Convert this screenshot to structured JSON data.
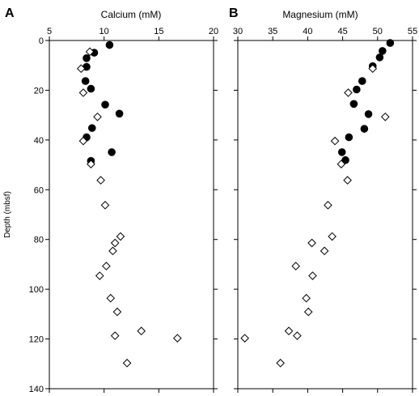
{
  "chart_data": [
    {
      "type": "scatter",
      "panel_label": "A",
      "xlabel": "Calcium (mM)",
      "ylabel": "Depth (mbsf)",
      "xlim": [
        5,
        20
      ],
      "ylim": [
        0,
        140
      ],
      "y_inverted": true,
      "x_axis_position": "top",
      "xticks": [
        5,
        10,
        15,
        20
      ],
      "yticks": [
        0,
        20,
        40,
        60,
        80,
        100,
        120,
        140
      ],
      "grid": false,
      "series": [
        {
          "marker": "filled-circle",
          "points": [
            {
              "x": 10.5,
              "y": 1.8
            },
            {
              "x": 9.1,
              "y": 4.9
            },
            {
              "x": 8.4,
              "y": 7.1
            },
            {
              "x": 8.4,
              "y": 10.6
            },
            {
              "x": 8.3,
              "y": 16.3
            },
            {
              "x": 8.8,
              "y": 19.4
            },
            {
              "x": 10.1,
              "y": 25.8
            },
            {
              "x": 11.4,
              "y": 29.4
            },
            {
              "x": 8.9,
              "y": 35.2
            },
            {
              "x": 8.4,
              "y": 38.9
            },
            {
              "x": 10.7,
              "y": 44.9
            },
            {
              "x": 8.8,
              "y": 48.4
            }
          ]
        },
        {
          "marker": "open-diamond",
          "points": [
            {
              "x": 8.7,
              "y": 4.5
            },
            {
              "x": 7.9,
              "y": 11.3
            },
            {
              "x": 8.1,
              "y": 21.0
            },
            {
              "x": 9.4,
              "y": 30.7
            },
            {
              "x": 8.1,
              "y": 40.4
            },
            {
              "x": 8.8,
              "y": 49.7
            },
            {
              "x": 9.7,
              "y": 56.2
            },
            {
              "x": 10.1,
              "y": 66.2
            },
            {
              "x": 11.5,
              "y": 78.8
            },
            {
              "x": 11.0,
              "y": 81.4
            },
            {
              "x": 10.8,
              "y": 84.6
            },
            {
              "x": 10.2,
              "y": 90.7
            },
            {
              "x": 9.6,
              "y": 94.6
            },
            {
              "x": 10.6,
              "y": 103.6
            },
            {
              "x": 11.2,
              "y": 109.1
            },
            {
              "x": 13.4,
              "y": 116.8
            },
            {
              "x": 11.0,
              "y": 118.7
            },
            {
              "x": 16.7,
              "y": 119.7
            },
            {
              "x": 12.1,
              "y": 129.7
            }
          ]
        }
      ]
    },
    {
      "type": "scatter",
      "panel_label": "B",
      "xlabel": "Magnesium (mM)",
      "ylabel": "",
      "xlim": [
        30,
        55
      ],
      "ylim": [
        0,
        140
      ],
      "y_inverted": true,
      "x_axis_position": "top",
      "xticks": [
        30,
        35,
        40,
        45,
        50,
        55
      ],
      "yticks": [
        0,
        20,
        40,
        60,
        80,
        100,
        120,
        140
      ],
      "grid": false,
      "series": [
        {
          "marker": "filled-circle",
          "points": [
            {
              "x": 51.8,
              "y": 1.0
            },
            {
              "x": 50.7,
              "y": 4.2
            },
            {
              "x": 50.3,
              "y": 6.8
            },
            {
              "x": 49.3,
              "y": 10.3
            },
            {
              "x": 47.8,
              "y": 16.3
            },
            {
              "x": 47.0,
              "y": 19.7
            },
            {
              "x": 46.6,
              "y": 25.5
            },
            {
              "x": 48.7,
              "y": 29.6
            },
            {
              "x": 48.1,
              "y": 35.5
            },
            {
              "x": 45.9,
              "y": 38.9
            },
            {
              "x": 44.9,
              "y": 44.9
            },
            {
              "x": 45.4,
              "y": 48.1
            }
          ]
        },
        {
          "marker": "open-diamond",
          "points": [
            {
              "x": 49.3,
              "y": 11.3
            },
            {
              "x": 45.8,
              "y": 21.0
            },
            {
              "x": 51.1,
              "y": 30.7
            },
            {
              "x": 43.9,
              "y": 40.4
            },
            {
              "x": 44.8,
              "y": 49.7
            },
            {
              "x": 45.7,
              "y": 56.2
            },
            {
              "x": 42.9,
              "y": 66.2
            },
            {
              "x": 43.5,
              "y": 78.8
            },
            {
              "x": 40.6,
              "y": 81.4
            },
            {
              "x": 42.4,
              "y": 84.6
            },
            {
              "x": 38.3,
              "y": 90.7
            },
            {
              "x": 40.7,
              "y": 94.6
            },
            {
              "x": 39.8,
              "y": 103.6
            },
            {
              "x": 40.1,
              "y": 109.1
            },
            {
              "x": 37.3,
              "y": 116.8
            },
            {
              "x": 38.5,
              "y": 118.7
            },
            {
              "x": 31.0,
              "y": 119.7
            },
            {
              "x": 36.1,
              "y": 129.7
            }
          ]
        }
      ]
    }
  ]
}
